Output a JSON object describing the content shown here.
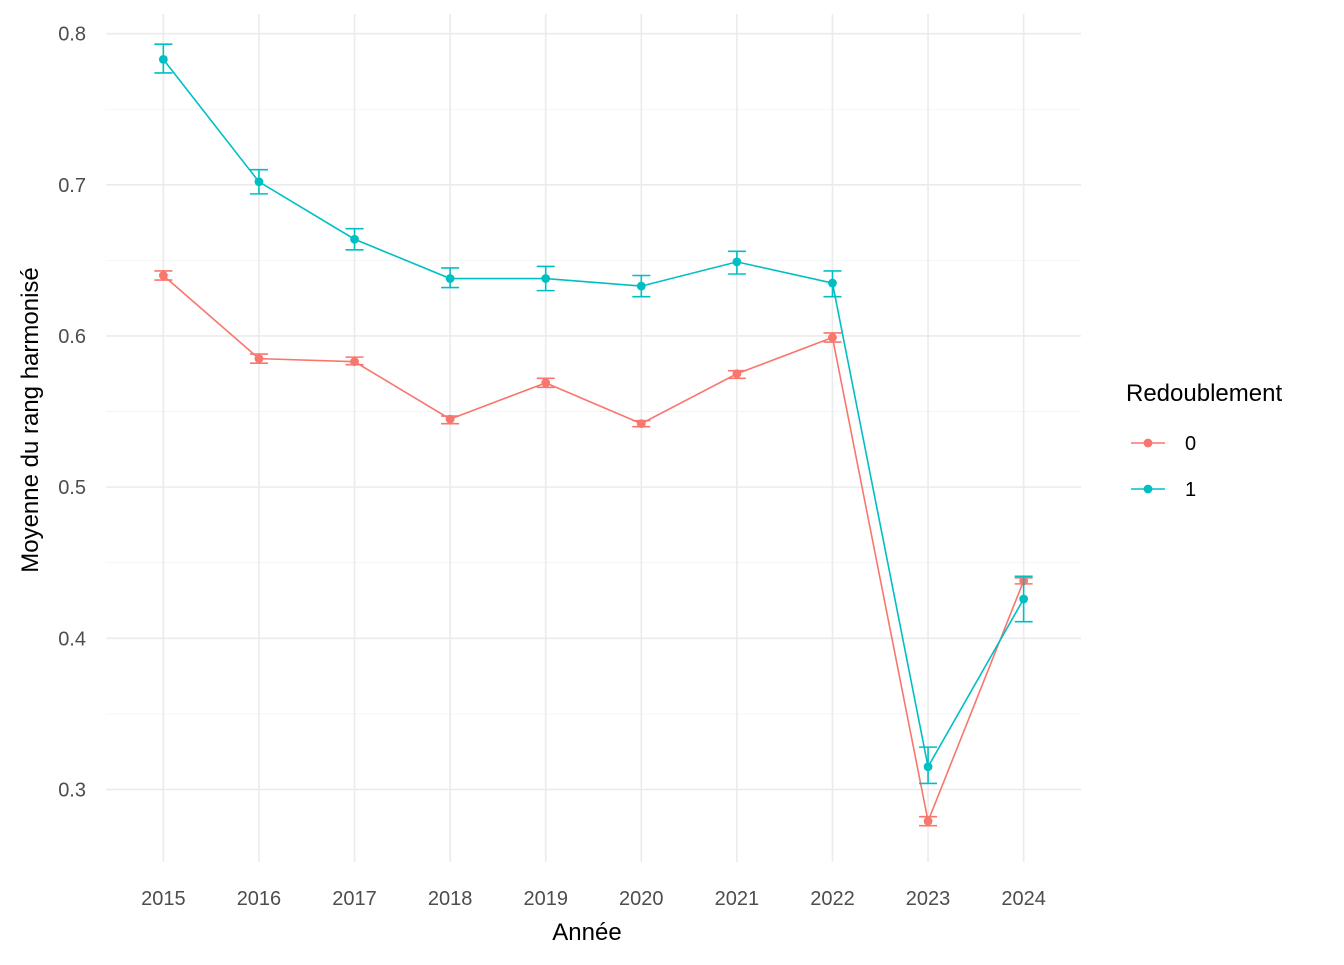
{
  "chart_data": {
    "type": "line",
    "title": "",
    "xlabel": "Année",
    "ylabel": "Moyenne du rang harmonisé",
    "x": [
      2015,
      2016,
      2017,
      2018,
      2019,
      2020,
      2021,
      2022,
      2023,
      2024
    ],
    "xticks": [
      "2015",
      "2016",
      "2017",
      "2018",
      "2019",
      "2020",
      "2021",
      "2022",
      "2023",
      "2024"
    ],
    "yticks": [
      "0.3",
      "0.4",
      "0.5",
      "0.6",
      "0.7",
      "0.8"
    ],
    "ylim": [
      0.252,
      0.813
    ],
    "grid": true,
    "legend": {
      "title": "Redoublement",
      "position": "right"
    },
    "series": [
      {
        "name": "0",
        "color": "#F8766D",
        "values": [
          0.64,
          0.585,
          0.583,
          0.545,
          0.569,
          0.542,
          0.575,
          0.599,
          0.279,
          0.438
        ],
        "error_low": [
          0.637,
          0.582,
          0.581,
          0.542,
          0.566,
          0.54,
          0.572,
          0.596,
          0.276,
          0.436
        ],
        "error_high": [
          0.643,
          0.588,
          0.586,
          0.547,
          0.572,
          0.544,
          0.577,
          0.602,
          0.282,
          0.44
        ]
      },
      {
        "name": "1",
        "color": "#00BFC4",
        "values": [
          0.783,
          0.702,
          0.664,
          0.638,
          0.638,
          0.633,
          0.649,
          0.635,
          0.315,
          0.426
        ],
        "error_low": [
          0.774,
          0.694,
          0.657,
          0.632,
          0.63,
          0.626,
          0.641,
          0.626,
          0.304,
          0.411
        ],
        "error_high": [
          0.793,
          0.71,
          0.671,
          0.645,
          0.646,
          0.64,
          0.656,
          0.643,
          0.328,
          0.441
        ]
      }
    ]
  }
}
